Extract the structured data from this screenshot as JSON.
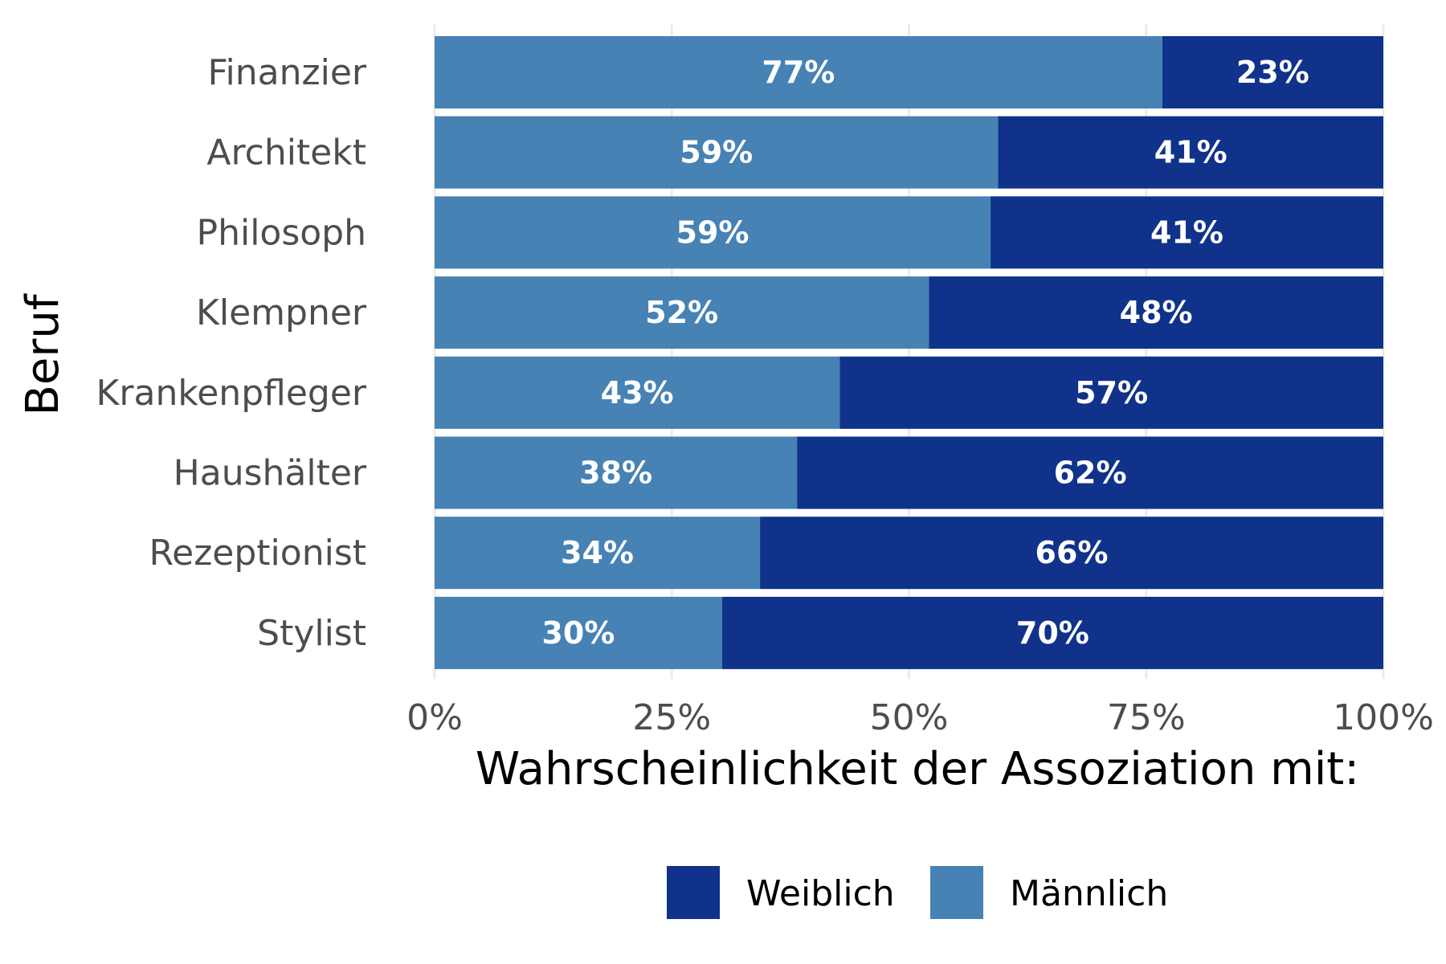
{
  "chart_data": {
    "type": "bar",
    "orientation": "horizontal",
    "stacked": true,
    "categories": [
      "Finanzier",
      "Architekt",
      "Philosoph",
      "Klempner",
      "Krankenpfleger",
      "Haushälter",
      "Rezeptionist",
      "Stylist"
    ],
    "series": [
      {
        "name": "Männlich",
        "color": "#4682b4",
        "values": [
          0.767,
          0.594,
          0.586,
          0.521,
          0.427,
          0.382,
          0.343,
          0.303
        ],
        "labels": [
          "77%",
          "59%",
          "59%",
          "52%",
          "43%",
          "38%",
          "34%",
          "30%"
        ]
      },
      {
        "name": "Weiblich",
        "color": "#10328a",
        "values": [
          0.233,
          0.406,
          0.414,
          0.479,
          0.573,
          0.618,
          0.657,
          0.697
        ],
        "labels": [
          "23%",
          "41%",
          "41%",
          "48%",
          "57%",
          "62%",
          "66%",
          "70%"
        ]
      }
    ],
    "xlabel": "Wahrscheinlichkeit der Assoziation mit:",
    "ylabel": "Beruf",
    "xlim": [
      0,
      1
    ],
    "x_ticks": [
      0,
      0.25,
      0.5,
      0.75,
      1
    ],
    "x_tick_labels": [
      "0%",
      "25%",
      "50%",
      "75%",
      "100%"
    ],
    "grid": true,
    "legend": {
      "position": "bottom",
      "entries": [
        {
          "label": "Weiblich",
          "color": "#10328a"
        },
        {
          "label": "Männlich",
          "color": "#4682b4"
        }
      ]
    }
  }
}
